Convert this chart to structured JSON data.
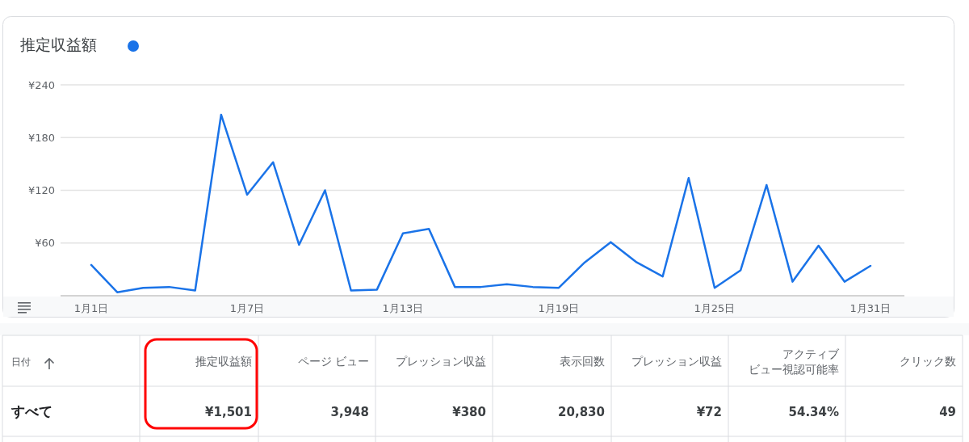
{
  "chart_data": [
    {
      "type": "line",
      "title": "推定収益額",
      "categories": [
        "1月1日",
        null,
        null,
        null,
        null,
        null,
        "1月7日",
        null,
        null,
        null,
        null,
        null,
        "1月13日",
        null,
        null,
        null,
        null,
        null,
        "1月19日",
        null,
        null,
        null,
        null,
        null,
        "1月25日",
        null,
        null,
        null,
        null,
        null,
        "1月31日"
      ],
      "series": [
        {
          "color": "#1a73e8",
          "values": [
            35,
            4,
            9,
            10,
            6,
            206,
            115,
            152,
            58,
            120,
            6,
            7,
            71,
            76,
            10,
            10,
            13,
            10,
            9,
            38,
            61,
            38,
            22,
            134,
            9,
            29,
            126,
            16,
            57,
            16,
            34
          ]
        }
      ],
      "ylim": [
        0,
        240
      ],
      "yticks": [
        {
          "value": 0,
          "label": null
        },
        {
          "value": 60,
          "label": "¥60"
        },
        {
          "value": 120,
          "label": "¥120"
        },
        {
          "value": 180,
          "label": "¥180"
        },
        {
          "value": 240,
          "label": "¥240"
        }
      ],
      "grid": "y",
      "marker": "none",
      "line_style": "solid"
    },
    {
      "type": "other",
      "ylabel": "日付",
      "categories": [
        "推定収益額",
        "ページ ビュー",
        "プレッション収益",
        "表示回数",
        "プレッション収益",
        "アクティブビュー視認可能率",
        "クリック数"
      ],
      "y_categories": [
        "すべて"
      ],
      "cell_labels": [
        [
          "¥1,501",
          "3,948",
          "¥380",
          "20,830",
          "¥72",
          "54.34%",
          "49"
        ]
      ]
    }
  ]
}
